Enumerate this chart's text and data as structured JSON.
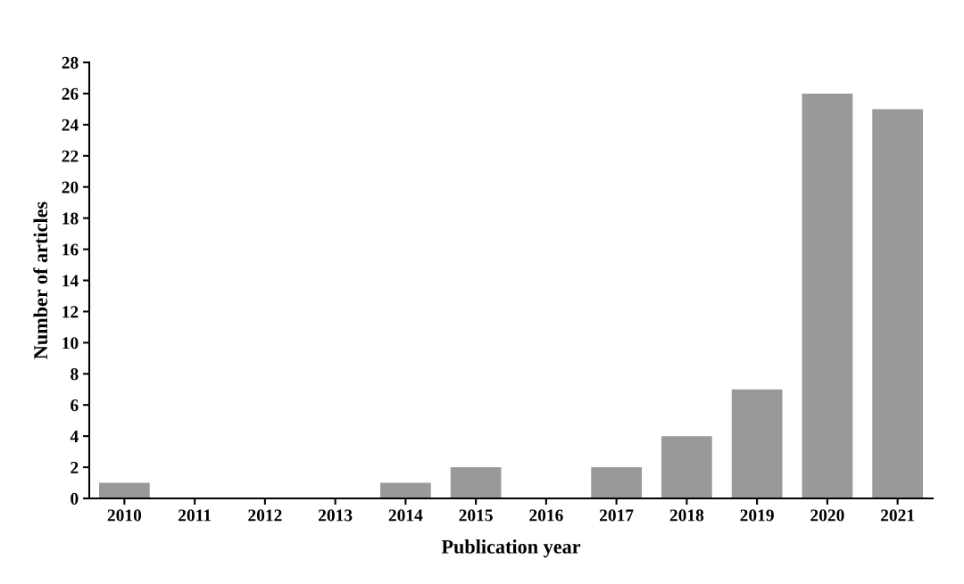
{
  "chart_data": {
    "type": "bar",
    "xlabel": "Publication year",
    "ylabel": "Number of articles",
    "categories": [
      "2010",
      "2011",
      "2012",
      "2013",
      "2014",
      "2015",
      "2016",
      "2017",
      "2018",
      "2019",
      "2020",
      "2021"
    ],
    "values": [
      1,
      0,
      0,
      0,
      1,
      2,
      0,
      2,
      4,
      7,
      26,
      25
    ],
    "color": "#999999",
    "ylim": [
      0,
      28
    ],
    "yticks": [
      0,
      2,
      4,
      6,
      8,
      10,
      12,
      14,
      16,
      18,
      20,
      22,
      24,
      26,
      28
    ],
    "grid": false,
    "legend": false
  }
}
